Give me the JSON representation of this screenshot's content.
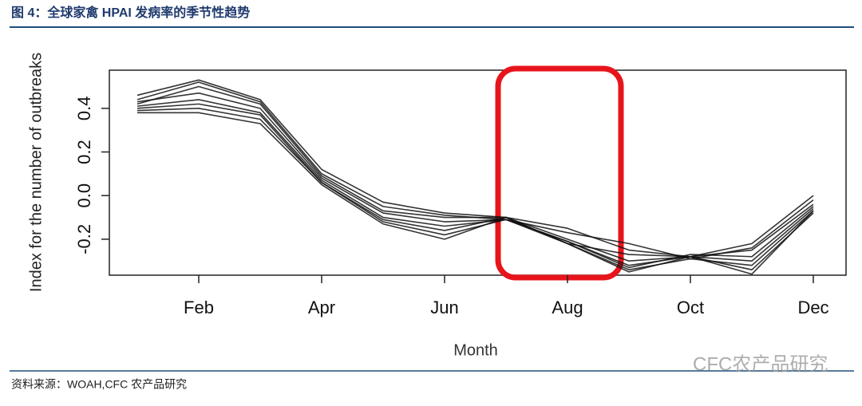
{
  "title": "图 4：全球家禽 HPAI 发病率的季节性趋势",
  "source": "资料来源：WOAH,CFC 农产品研究",
  "watermark": "CFC农产品研究",
  "chart_data": {
    "type": "line",
    "x_label": "Month",
    "y_label": "Index for the number of outbreaks",
    "categories": [
      null,
      "Feb",
      null,
      "Apr",
      null,
      "Jun",
      null,
      "Aug",
      null,
      "Oct",
      null,
      "Dec"
    ],
    "ylim": [
      -0.365,
      0.575
    ],
    "yticks": [
      -0.2,
      {
        "value": 0,
        "label": "0.0"
      },
      0.2,
      0.4
    ],
    "color": "#111111",
    "series": [
      {
        "values": [
          0.46,
          0.53,
          0.44,
          0.12,
          -0.03,
          -0.08,
          -0.1,
          -0.15,
          -0.25,
          -0.28,
          -0.22,
          0.0
        ]
      },
      {
        "values": [
          0.44,
          0.52,
          0.43,
          0.1,
          -0.05,
          -0.09,
          -0.11,
          -0.17,
          -0.22,
          -0.29,
          -0.24,
          -0.02
        ]
      },
      {
        "values": [
          0.42,
          0.5,
          0.42,
          0.09,
          -0.07,
          -0.1,
          -0.1,
          -0.2,
          -0.3,
          -0.28,
          -0.25,
          -0.04
        ]
      },
      {
        "values": [
          0.43,
          0.47,
          0.4,
          0.08,
          -0.08,
          -0.12,
          -0.11,
          -0.21,
          -0.33,
          -0.27,
          -0.28,
          -0.05
        ]
      },
      {
        "values": [
          0.41,
          0.44,
          0.38,
          0.07,
          -0.1,
          -0.14,
          -0.11,
          -0.22,
          -0.35,
          -0.28,
          -0.3,
          -0.06
        ]
      },
      {
        "values": [
          0.4,
          0.42,
          0.37,
          0.06,
          -0.11,
          -0.16,
          -0.1,
          -0.22,
          -0.34,
          -0.29,
          -0.32,
          -0.07
        ]
      },
      {
        "values": [
          0.39,
          0.4,
          0.35,
          0.06,
          -0.12,
          -0.18,
          -0.11,
          -0.21,
          -0.32,
          -0.28,
          -0.34,
          -0.08
        ]
      },
      {
        "values": [
          0.38,
          0.38,
          0.33,
          0.05,
          -0.13,
          -0.2,
          -0.1,
          -0.22,
          -0.27,
          -0.28,
          -0.36,
          -0.07
        ]
      }
    ]
  }
}
